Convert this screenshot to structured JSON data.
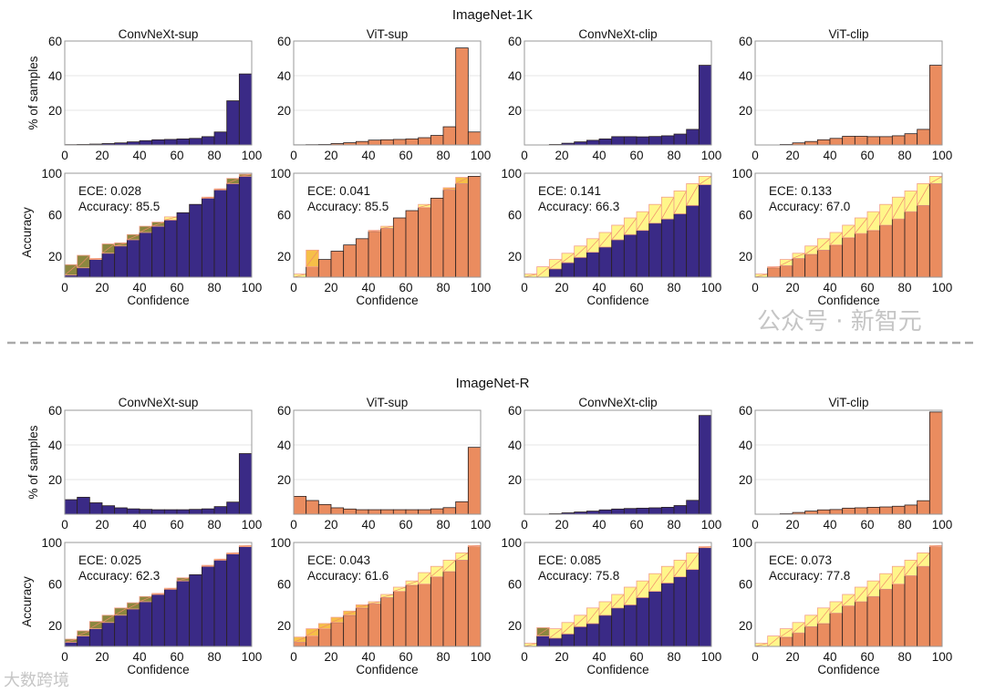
{
  "colors": {
    "navy": "#3a2a86",
    "orange": "#ea8c5f",
    "gap_light": "#fff68a",
    "gap_navy_under": "#8c873f",
    "gap_orange_under": "#f6bf48",
    "edge": "#2a2020",
    "divider": "#aaaaaa"
  },
  "watermarks": {
    "right": "公众号 · 新智元",
    "left": "大数跨境"
  },
  "chart_data": [
    {
      "group_title": "ImageNet-1K",
      "type": "bar",
      "bins": 15,
      "hist_ylabel": "% of samples",
      "acc_ylabel": "Accuracy",
      "xlabel": "Confidence",
      "hist_ylim": [
        0,
        60
      ],
      "hist_yticks": [
        "20",
        "40",
        "60"
      ],
      "acc_ylim": [
        0,
        100
      ],
      "acc_yticks": [
        "20",
        "60",
        "100"
      ],
      "xticks": [
        "0",
        "20",
        "40",
        "60",
        "80",
        "100"
      ],
      "panels": [
        {
          "title": "ConvNeXt-sup",
          "color": "navy",
          "ece": "ECE: 0.028",
          "accuracy": "Accuracy: 85.5",
          "hist": [
            0.2,
            0.3,
            0.5,
            0.8,
            1.2,
            1.8,
            2.5,
            3,
            3.2,
            3.5,
            3.8,
            4.8,
            7.5,
            25.5,
            41
          ],
          "acc": [
            2,
            9,
            17,
            23,
            30,
            36,
            43,
            49,
            55,
            62,
            70,
            76,
            84,
            90,
            97
          ],
          "gap_top": [
            12,
            21,
            18,
            32,
            33,
            41,
            49,
            53,
            58,
            62,
            70,
            77,
            85,
            95,
            99
          ]
        },
        {
          "title": "ViT-sup",
          "color": "orange",
          "ece": "ECE: 0.041",
          "accuracy": "Accuracy: 85.5",
          "hist": [
            0.1,
            0.2,
            0.3,
            0.8,
            1.3,
            2,
            2.8,
            3,
            3.2,
            3.5,
            4.2,
            5.5,
            10.5,
            56,
            7.5
          ],
          "acc": [
            0,
            10,
            17,
            25,
            31,
            37,
            44,
            47,
            57,
            64,
            67,
            76,
            84,
            90,
            97
          ],
          "gap_top": [
            3,
            26,
            17,
            25,
            31,
            37,
            45,
            49,
            57,
            64,
            70,
            76,
            86,
            96,
            97
          ]
        },
        {
          "title": "ConvNeXt-clip",
          "color": "navy",
          "ece": "ECE: 0.141",
          "accuracy": "Accuracy: 66.3",
          "hist": [
            0,
            0,
            0.3,
            1,
            1.8,
            2.7,
            3.5,
            4.8,
            4.8,
            4.7,
            4.9,
            5.3,
            6.3,
            9,
            46
          ],
          "acc": [
            0,
            0,
            8,
            14,
            19,
            24,
            29,
            36,
            41,
            45,
            52,
            56,
            61,
            69,
            89
          ],
          "gap_top": [
            3,
            10,
            17,
            23,
            30,
            37,
            43,
            50,
            57,
            63,
            70,
            77,
            83,
            90,
            97
          ]
        },
        {
          "title": "ViT-clip",
          "color": "orange",
          "ece": "ECE: 0.133",
          "accuracy": "Accuracy: 67.0",
          "hist": [
            0,
            0,
            0.3,
            1.2,
            2,
            3,
            3.8,
            5,
            5,
            4.8,
            4.8,
            5.3,
            6.5,
            9,
            46
          ],
          "acc": [
            0,
            9,
            11,
            18,
            22,
            26,
            31,
            38,
            42,
            45,
            50,
            56,
            63,
            69,
            90
          ],
          "gap_top": [
            3,
            10,
            17,
            23,
            30,
            37,
            43,
            50,
            57,
            63,
            70,
            77,
            83,
            90,
            97
          ]
        }
      ]
    },
    {
      "group_title": "ImageNet-R",
      "type": "bar",
      "bins": 15,
      "hist_ylabel": "% of samples",
      "acc_ylabel": "Accuracy",
      "xlabel": "Confidence",
      "hist_ylim": [
        0,
        60
      ],
      "hist_yticks": [
        "20",
        "40",
        "60"
      ],
      "acc_ylim": [
        0,
        100
      ],
      "acc_yticks": [
        "20",
        "60",
        "100"
      ],
      "xticks": [
        "0",
        "20",
        "40",
        "60",
        "80",
        "100"
      ],
      "panels": [
        {
          "title": "ConvNeXt-sup",
          "color": "navy",
          "ece": "ECE: 0.025",
          "accuracy": "Accuracy: 62.3",
          "hist": [
            8.4,
            9.8,
            6.6,
            4.9,
            3.7,
            3.1,
            2.8,
            2.6,
            2.6,
            2.6,
            2.8,
            3.1,
            4.4,
            7,
            35
          ],
          "acc": [
            4,
            10,
            17,
            23,
            30,
            36,
            43,
            50,
            55,
            63,
            69,
            77,
            83,
            89,
            96
          ],
          "gap_top": [
            7,
            15,
            24,
            30,
            37,
            42,
            48,
            51,
            56,
            66,
            69,
            78,
            84,
            90,
            97
          ]
        },
        {
          "title": "ViT-sup",
          "color": "orange",
          "ece": "ECE: 0.043",
          "accuracy": "Accuracy: 61.6",
          "hist": [
            10.3,
            7.9,
            5.6,
            3.7,
            3,
            2.6,
            2.6,
            2.6,
            2.6,
            2.6,
            2.6,
            3.1,
            3.8,
            7.2,
            38.6
          ],
          "acc": [
            4,
            10,
            17,
            23,
            30,
            37,
            41,
            47,
            53,
            59,
            60,
            67,
            72,
            83,
            96
          ],
          "gap_top": [
            9,
            17,
            22,
            28,
            34,
            40,
            43,
            50,
            57,
            63,
            71,
            77,
            83,
            90,
            97
          ]
        },
        {
          "title": "ConvNeXt-clip",
          "color": "navy",
          "ece": "ECE: 0.085",
          "accuracy": "Accuracy: 75.8",
          "hist": [
            0,
            0,
            0.3,
            0.8,
            1.3,
            1.8,
            2.5,
            3,
            3.3,
            3.5,
            3.7,
            4,
            5,
            8,
            57
          ],
          "acc": [
            0,
            10,
            8,
            12,
            19,
            22,
            30,
            37,
            40,
            47,
            53,
            61,
            67,
            74,
            95
          ],
          "gap_top": [
            3,
            18,
            17,
            23,
            30,
            37,
            43,
            50,
            57,
            63,
            70,
            77,
            83,
            90,
            96
          ]
        },
        {
          "title": "ViT-clip",
          "color": "orange",
          "ece": "ECE: 0.073",
          "accuracy": "Accuracy: 77.8",
          "hist": [
            0,
            0,
            0.3,
            1,
            1.8,
            2.5,
            2.7,
            3.5,
            3.7,
            4,
            4.2,
            4.6,
            5.3,
            7.8,
            59
          ],
          "acc": [
            0,
            0,
            9,
            13,
            19,
            22,
            32,
            39,
            43,
            48,
            55,
            60,
            68,
            77,
            96
          ],
          "gap_top": [
            3,
            10,
            17,
            23,
            30,
            37,
            43,
            50,
            57,
            63,
            70,
            77,
            83,
            90,
            97
          ]
        }
      ]
    }
  ]
}
